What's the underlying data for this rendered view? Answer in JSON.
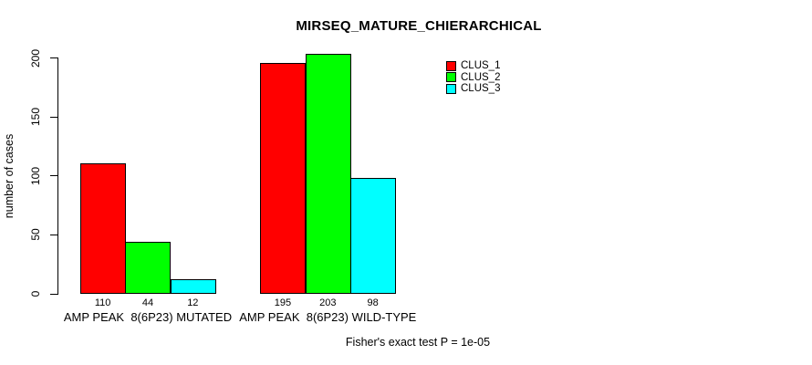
{
  "chart_data": {
    "type": "bar",
    "title": "MIRSEQ_MATURE_CHIERARCHICAL",
    "ylabel": "number of cases",
    "xlabel": "",
    "ylim": [
      0,
      200
    ],
    "yticks": [
      0,
      50,
      100,
      150,
      200
    ],
    "grid": false,
    "legend_position": "top-right",
    "bar_border_color": "#000000",
    "categories": [
      "AMP PEAK  8(6P23) MUTATED",
      "AMP PEAK  8(6P23) WILD-TYPE"
    ],
    "series": [
      {
        "name": "CLUS_1",
        "color": "#FF0000",
        "values": [
          110,
          195
        ]
      },
      {
        "name": "CLUS_2",
        "color": "#00FF00",
        "values": [
          44,
          203
        ]
      },
      {
        "name": "CLUS_3",
        "color": "#00FFFF",
        "values": [
          12,
          98
        ]
      }
    ],
    "bar_value_labels": [
      [
        "110",
        "44",
        "12"
      ],
      [
        "195",
        "203",
        "98"
      ]
    ],
    "footnote": "Fisher's exact test P = 1e-05"
  }
}
